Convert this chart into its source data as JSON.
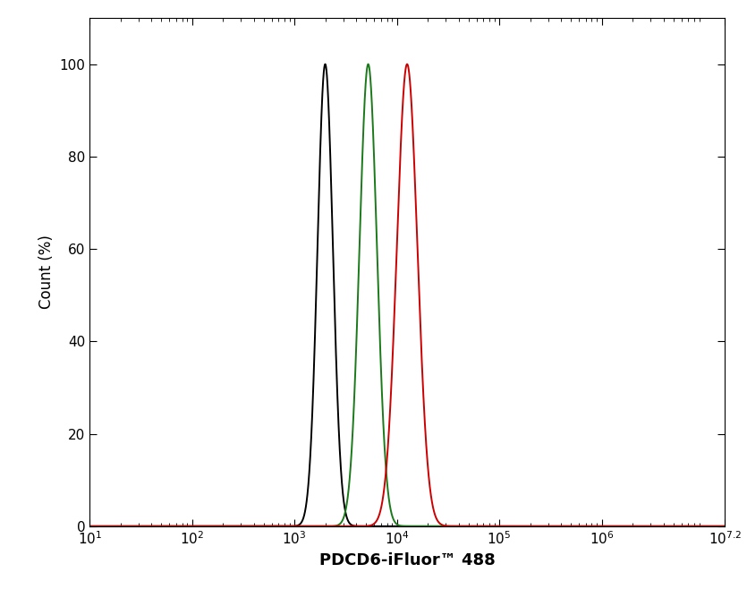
{
  "xlabel": "PDCD6-iFluor™ 488",
  "ylabel": "Count (%)",
  "xlim_log_min": 1,
  "xlim_log_max": 7.2,
  "ylim": [
    0,
    110
  ],
  "yticks": [
    0,
    20,
    40,
    60,
    80,
    100
  ],
  "black_peak_log": 3.3,
  "black_sigma_log": 0.075,
  "green_peak_log": 3.72,
  "green_sigma_log": 0.085,
  "red_peak_log": 4.1,
  "red_sigma_log": 0.1,
  "black_color": "#000000",
  "green_color": "#1a7a1a",
  "red_color": "#cc0000",
  "line_width": 1.4,
  "background_color": "#ffffff",
  "xlabel_fontsize": 13,
  "ylabel_fontsize": 12,
  "tick_fontsize": 11
}
